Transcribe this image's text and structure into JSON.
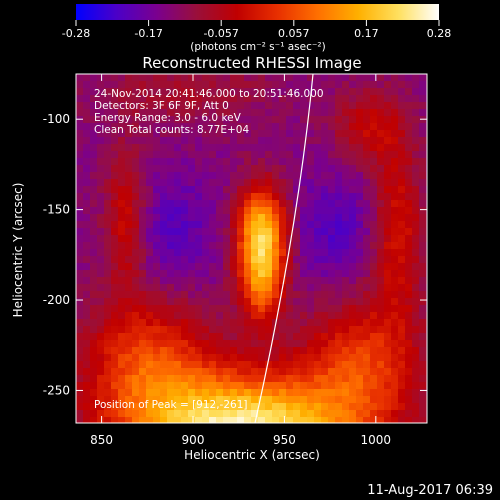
{
  "colorbar": {
    "ticks": [
      "-0.28",
      "-0.17",
      "-0.057",
      "0.057",
      "0.17",
      "0.28"
    ],
    "units_label": "(photons cm⁻² s⁻¹ asec⁻²)",
    "stops": [
      "#0000ff",
      "#4b00c8",
      "#7a008f",
      "#9a0f3a",
      "#c00000",
      "#e83000",
      "#ff7000",
      "#ffb000",
      "#ffe060",
      "#ffffff"
    ]
  },
  "title": "Reconstructed RHESSI Image",
  "info": {
    "time_range": "24-Nov-2014 20:41:46.000 to 20:51:46.000",
    "detectors": "Detectors: 3F 6F 9F, Att 0",
    "energy": "Energy Range: 3.0 - 6.0 keV",
    "clean": "Clean     Total counts: 8.77E+04",
    "peak": "Position of Peak = [912,-261]"
  },
  "x_axis": {
    "label": "Heliocentric X (arcsec)",
    "ticks": [
      "850",
      "900",
      "950",
      "1000"
    ],
    "range": [
      836,
      1028
    ]
  },
  "y_axis": {
    "label": "Heliocentric Y (arcsec)",
    "ticks": [
      "-100",
      "-150",
      "-200",
      "-250"
    ],
    "range": [
      -268,
      -75
    ]
  },
  "footer": {
    "date": "11-Aug-2017 06:39"
  }
}
